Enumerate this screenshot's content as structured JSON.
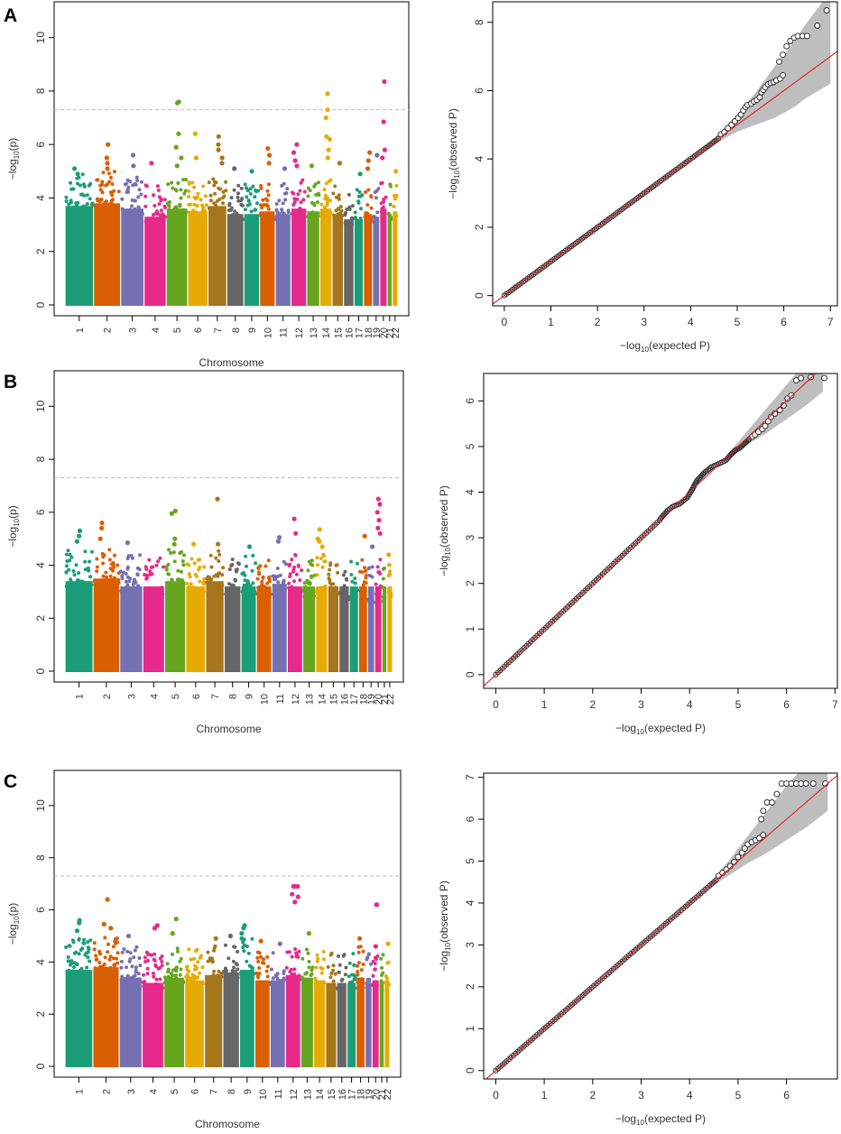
{
  "figure": {
    "panels": [
      {
        "letter": "A",
        "manhattan_ref": 0,
        "qq_ref": 3
      },
      {
        "letter": "B",
        "manhattan_ref": 1,
        "qq_ref": 4
      },
      {
        "letter": "C",
        "manhattan_ref": 2,
        "qq_ref": 5
      }
    ]
  },
  "colors": {
    "chromosome_palette": [
      "#1b9e77",
      "#d95f02",
      "#7570b3",
      "#e7298a",
      "#66a61e",
      "#e6ab02",
      "#a6761d",
      "#666666"
    ],
    "threshold_line": "#bbbbbb",
    "qq_points": "#222222",
    "qq_diagonal": "#e41a1c",
    "qq_confidence_band": "#bebebe",
    "axis": "#000000"
  },
  "chart_data": [
    {
      "type": "scatter",
      "subtype": "manhattan",
      "panel": "A",
      "xlabel": "Chromosome",
      "ylabel": "−log10(p)",
      "ylim": [
        0,
        11
      ],
      "yticks": [
        0,
        2,
        4,
        6,
        8,
        10
      ],
      "genome_wide_threshold": 7.3,
      "chromosomes": [
        "1",
        "2",
        "3",
        "4",
        "5",
        "6",
        "7",
        "8",
        "9",
        "10",
        "11",
        "12",
        "13",
        "14",
        "15",
        "16",
        "17",
        "18",
        "19",
        "20",
        "21",
        "22"
      ],
      "chromosome_widths": [
        1.0,
        0.95,
        0.82,
        0.78,
        0.75,
        0.71,
        0.66,
        0.6,
        0.55,
        0.55,
        0.55,
        0.55,
        0.46,
        0.43,
        0.4,
        0.37,
        0.33,
        0.32,
        0.25,
        0.26,
        0.18,
        0.2
      ],
      "chromosome_background_max": [
        4.9,
        5.0,
        4.8,
        4.5,
        4.8,
        4.7,
        4.9,
        4.6,
        4.6,
        4.7,
        4.6,
        4.8,
        4.7,
        4.8,
        4.6,
        4.4,
        4.4,
        4.6,
        4.5,
        4.8,
        4.6,
        4.7
      ],
      "peaks": [
        {
          "chromosome": "1",
          "values": [
            5.1,
            4.9
          ]
        },
        {
          "chromosome": "2",
          "values": [
            6.0,
            5.5,
            5.3,
            5.1
          ]
        },
        {
          "chromosome": "3",
          "values": [
            5.6,
            5.2
          ]
        },
        {
          "chromosome": "4",
          "values": [
            5.3
          ]
        },
        {
          "chromosome": "5",
          "values": [
            7.6,
            7.55,
            6.4,
            5.9,
            5.5,
            5.2
          ]
        },
        {
          "chromosome": "6",
          "values": [
            6.4,
            5.5
          ]
        },
        {
          "chromosome": "7",
          "values": [
            6.3,
            6.0,
            5.8,
            5.5,
            5.3
          ]
        },
        {
          "chromosome": "8",
          "values": [
            5.1
          ]
        },
        {
          "chromosome": "9",
          "values": [
            5.0
          ]
        },
        {
          "chromosome": "10",
          "values": [
            5.85,
            5.6,
            5.3
          ]
        },
        {
          "chromosome": "11",
          "values": [
            5.1
          ]
        },
        {
          "chromosome": "12",
          "values": [
            6.0,
            5.7,
            5.4,
            5.2
          ]
        },
        {
          "chromosome": "13",
          "values": [
            5.2
          ]
        },
        {
          "chromosome": "14",
          "values": [
            7.9,
            7.3,
            7.0,
            6.3,
            6.2,
            5.8,
            5.5
          ]
        },
        {
          "chromosome": "15",
          "values": [
            5.3
          ]
        },
        {
          "chromosome": "17",
          "values": [
            4.9
          ]
        },
        {
          "chromosome": "18",
          "values": [
            5.7,
            5.4,
            5.1
          ]
        },
        {
          "chromosome": "19",
          "values": [
            5.6
          ]
        },
        {
          "chromosome": "20",
          "values": [
            8.35,
            6.85,
            5.8,
            5.5
          ]
        },
        {
          "chromosome": "22",
          "values": [
            5.0
          ]
        }
      ]
    },
    {
      "type": "scatter",
      "subtype": "manhattan",
      "panel": "B",
      "xlabel": "Chromosome",
      "ylabel": "−log10(p)",
      "ylim": [
        0,
        11
      ],
      "yticks": [
        0,
        2,
        4,
        6,
        8,
        10
      ],
      "genome_wide_threshold": 7.3,
      "chromosomes": [
        "1",
        "2",
        "3",
        "4",
        "5",
        "6",
        "7",
        "8",
        "9",
        "10",
        "11",
        "12",
        "13",
        "14",
        "15",
        "16",
        "17",
        "18",
        "19",
        "20",
        "21",
        "22"
      ],
      "chromosome_widths": [
        1.0,
        0.95,
        0.82,
        0.78,
        0.75,
        0.71,
        0.66,
        0.6,
        0.55,
        0.55,
        0.55,
        0.55,
        0.46,
        0.43,
        0.4,
        0.37,
        0.33,
        0.32,
        0.25,
        0.26,
        0.18,
        0.2
      ],
      "chromosome_background_max": [
        4.6,
        4.7,
        4.4,
        4.3,
        4.6,
        4.4,
        4.6,
        4.3,
        4.4,
        4.3,
        4.5,
        4.4,
        4.2,
        4.4,
        4.2,
        4.1,
        4.2,
        4.3,
        4.0,
        4.3,
        3.9,
        4.1
      ],
      "peaks": [
        {
          "chromosome": "1",
          "values": [
            5.3,
            5.1,
            4.9
          ]
        },
        {
          "chromosome": "2",
          "values": [
            5.6,
            5.4,
            5.0
          ]
        },
        {
          "chromosome": "3",
          "values": [
            4.85
          ]
        },
        {
          "chromosome": "5",
          "values": [
            6.05,
            5.95,
            5.0,
            4.8
          ]
        },
        {
          "chromosome": "6",
          "values": [
            4.8
          ]
        },
        {
          "chromosome": "7",
          "values": [
            6.5,
            4.8
          ]
        },
        {
          "chromosome": "9",
          "values": [
            4.7
          ]
        },
        {
          "chromosome": "11",
          "values": [
            5.05,
            4.9
          ]
        },
        {
          "chromosome": "12",
          "values": [
            5.75,
            5.2
          ]
        },
        {
          "chromosome": "14",
          "values": [
            5.35,
            5.0,
            4.9,
            4.7
          ]
        },
        {
          "chromosome": "18",
          "values": [
            5.1
          ]
        },
        {
          "chromosome": "19",
          "values": [
            4.7
          ]
        },
        {
          "chromosome": "20",
          "values": [
            6.5,
            6.3,
            6.0,
            5.7,
            5.4,
            5.2
          ]
        },
        {
          "chromosome": "22",
          "values": [
            4.4
          ]
        }
      ]
    },
    {
      "type": "scatter",
      "subtype": "manhattan",
      "panel": "C",
      "xlabel": "Chromosome",
      "ylabel": "−log10(p)",
      "ylim": [
        0,
        11
      ],
      "yticks": [
        0,
        2,
        4,
        6,
        8,
        10
      ],
      "genome_wide_threshold": 7.3,
      "chromosomes": [
        "1",
        "2",
        "3",
        "4",
        "5",
        "6",
        "7",
        "8",
        "9",
        "10",
        "11",
        "12",
        "13",
        "14",
        "15",
        "16",
        "17",
        "18",
        "19",
        "20",
        "21",
        "22"
      ],
      "chromosome_widths": [
        1.0,
        0.95,
        0.82,
        0.78,
        0.75,
        0.71,
        0.66,
        0.6,
        0.55,
        0.55,
        0.55,
        0.55,
        0.46,
        0.43,
        0.4,
        0.37,
        0.33,
        0.32,
        0.25,
        0.26,
        0.18,
        0.2
      ],
      "chromosome_background_max": [
        4.9,
        5.0,
        4.6,
        4.4,
        4.6,
        4.5,
        4.7,
        4.8,
        4.9,
        4.5,
        4.5,
        4.7,
        4.6,
        4.5,
        4.4,
        4.3,
        4.4,
        4.6,
        4.4,
        4.5,
        4.3,
        4.5
      ],
      "peaks": [
        {
          "chromosome": "1",
          "values": [
            5.6,
            5.5,
            5.2
          ]
        },
        {
          "chromosome": "2",
          "values": [
            6.4,
            5.45,
            5.3
          ]
        },
        {
          "chromosome": "3",
          "values": [
            5.0
          ]
        },
        {
          "chromosome": "4",
          "values": [
            5.4,
            5.3
          ]
        },
        {
          "chromosome": "5",
          "values": [
            5.65,
            5.1
          ]
        },
        {
          "chromosome": "7",
          "values": [
            4.9
          ]
        },
        {
          "chromosome": "8",
          "values": [
            5.0
          ]
        },
        {
          "chromosome": "9",
          "values": [
            5.4,
            5.3,
            5.1,
            4.9
          ]
        },
        {
          "chromosome": "10",
          "values": [
            4.8
          ]
        },
        {
          "chromosome": "11",
          "values": [
            4.7
          ]
        },
        {
          "chromosome": "12",
          "values": [
            6.9,
            6.9,
            6.9,
            6.9,
            6.6,
            6.5,
            6.3
          ]
        },
        {
          "chromosome": "13",
          "values": [
            5.1
          ]
        },
        {
          "chromosome": "18",
          "values": [
            4.9
          ]
        },
        {
          "chromosome": "20",
          "values": [
            6.2,
            6.2,
            4.6
          ]
        },
        {
          "chromosome": "22",
          "values": [
            4.7
          ]
        }
      ]
    },
    {
      "type": "scatter",
      "subtype": "qq",
      "panel": "A",
      "xlabel": "−log10(expected P)",
      "ylabel": "−log10(observed P)",
      "xlim": [
        -0.25,
        7.15
      ],
      "ylim": [
        -0.3,
        8.6
      ],
      "xticks": [
        0,
        1,
        2,
        3,
        4,
        5,
        6,
        7
      ],
      "yticks": [
        0,
        2,
        4,
        6,
        8
      ],
      "bulk_max_x": 4.6,
      "confidence_band": [
        [
          4.3,
          4.35,
          4.25
        ],
        [
          4.6,
          4.75,
          4.5
        ],
        [
          5.0,
          5.3,
          4.8
        ],
        [
          5.4,
          5.95,
          5.0
        ],
        [
          5.8,
          6.7,
          5.2
        ],
        [
          6.2,
          7.4,
          5.5
        ],
        [
          6.5,
          8.0,
          5.8
        ],
        [
          7.0,
          8.9,
          6.2
        ]
      ],
      "tail_points": [
        [
          4.65,
          4.72
        ],
        [
          4.72,
          4.78
        ],
        [
          4.8,
          4.9
        ],
        [
          4.88,
          5.0
        ],
        [
          4.95,
          5.1
        ],
        [
          5.02,
          5.2
        ],
        [
          5.08,
          5.3
        ],
        [
          5.13,
          5.42
        ],
        [
          5.18,
          5.52
        ],
        [
          5.22,
          5.58
        ],
        [
          5.3,
          5.62
        ],
        [
          5.36,
          5.68
        ],
        [
          5.42,
          5.73
        ],
        [
          5.48,
          5.8
        ],
        [
          5.52,
          5.95
        ],
        [
          5.56,
          6.02
        ],
        [
          5.6,
          6.1
        ],
        [
          5.66,
          6.18
        ],
        [
          5.72,
          6.22
        ],
        [
          5.78,
          6.25
        ],
        [
          5.84,
          6.3
        ],
        [
          5.92,
          6.35
        ],
        [
          5.98,
          6.45
        ],
        [
          5.9,
          6.85
        ],
        [
          5.98,
          7.05
        ],
        [
          6.06,
          7.3
        ],
        [
          6.14,
          7.45
        ],
        [
          6.22,
          7.55
        ],
        [
          6.3,
          7.6
        ],
        [
          6.4,
          7.6
        ],
        [
          6.5,
          7.6
        ],
        [
          6.72,
          7.9
        ],
        [
          6.92,
          8.35
        ]
      ]
    },
    {
      "type": "scatter",
      "subtype": "qq",
      "panel": "B",
      "xlabel": "−log10(expected P)",
      "ylabel": "−log10(observed P)",
      "xlim": [
        -0.25,
        7.05
      ],
      "ylim": [
        -0.3,
        6.6
      ],
      "xticks": [
        0,
        1,
        2,
        3,
        4,
        5,
        6,
        7
      ],
      "yticks": [
        0,
        1,
        2,
        3,
        4,
        5,
        6
      ],
      "bulk_max_x": 3.4,
      "bulk_curve": [
        [
          3.4,
          3.42
        ],
        [
          3.55,
          3.6
        ],
        [
          3.65,
          3.68
        ],
        [
          3.8,
          3.75
        ],
        [
          3.95,
          3.88
        ],
        [
          4.05,
          4.05
        ],
        [
          4.15,
          4.25
        ],
        [
          4.3,
          4.42
        ],
        [
          4.45,
          4.55
        ],
        [
          4.6,
          4.62
        ],
        [
          4.75,
          4.7
        ],
        [
          4.85,
          4.82
        ],
        [
          4.95,
          4.92
        ],
        [
          5.05,
          4.98
        ],
        [
          5.15,
          5.08
        ],
        [
          5.25,
          5.18
        ]
      ],
      "confidence_band": [
        [
          4.8,
          4.85,
          4.75
        ],
        [
          5.2,
          5.35,
          5.05
        ],
        [
          5.6,
          5.85,
          5.3
        ],
        [
          6.0,
          6.35,
          5.6
        ],
        [
          6.4,
          6.85,
          5.9
        ],
        [
          6.75,
          7.1,
          6.2
        ]
      ],
      "tail_points": [
        [
          5.3,
          5.22
        ],
        [
          5.35,
          5.26
        ],
        [
          5.42,
          5.32
        ],
        [
          5.5,
          5.38
        ],
        [
          5.56,
          5.45
        ],
        [
          5.62,
          5.55
        ],
        [
          5.68,
          5.65
        ],
        [
          5.76,
          5.72
        ],
        [
          5.86,
          5.8
        ],
        [
          5.94,
          5.9
        ],
        [
          6.02,
          6.05
        ],
        [
          6.1,
          6.12
        ],
        [
          6.2,
          6.45
        ],
        [
          6.3,
          6.5
        ],
        [
          6.5,
          6.52
        ],
        [
          6.78,
          6.5
        ]
      ]
    },
    {
      "type": "scatter",
      "subtype": "qq",
      "panel": "C",
      "xlabel": "−log10(expected P)",
      "ylabel": "−log10(observed P)",
      "xlim": [
        -0.25,
        7.05
      ],
      "ylim": [
        -0.2,
        7.1
      ],
      "xticks": [
        0,
        1,
        2,
        3,
        4,
        5,
        6
      ],
      "yticks": [
        0,
        1,
        2,
        3,
        4,
        5,
        6,
        7
      ],
      "bulk_max_x": 4.55,
      "confidence_band": [
        [
          4.4,
          4.45,
          4.35
        ],
        [
          4.8,
          5.0,
          4.65
        ],
        [
          5.2,
          5.6,
          4.95
        ],
        [
          5.6,
          6.2,
          5.2
        ],
        [
          6.0,
          6.8,
          5.5
        ],
        [
          6.4,
          7.3,
          5.8
        ],
        [
          6.85,
          7.6,
          6.2
        ]
      ],
      "tail_points": [
        [
          4.6,
          4.65
        ],
        [
          4.68,
          4.72
        ],
        [
          4.76,
          4.8
        ],
        [
          4.84,
          4.88
        ],
        [
          4.92,
          4.98
        ],
        [
          5.0,
          5.1
        ],
        [
          5.08,
          5.2
        ],
        [
          5.14,
          5.3
        ],
        [
          5.2,
          5.4
        ],
        [
          5.28,
          5.45
        ],
        [
          5.36,
          5.5
        ],
        [
          5.44,
          5.55
        ],
        [
          5.52,
          5.62
        ],
        [
          5.48,
          6.0
        ],
        [
          5.52,
          6.2
        ],
        [
          5.6,
          6.4
        ],
        [
          5.7,
          6.4
        ],
        [
          5.8,
          6.6
        ],
        [
          5.9,
          6.85
        ],
        [
          6.0,
          6.85
        ],
        [
          6.1,
          6.85
        ],
        [
          6.2,
          6.85
        ],
        [
          6.3,
          6.85
        ],
        [
          6.4,
          6.85
        ],
        [
          6.55,
          6.85
        ],
        [
          6.8,
          6.85
        ]
      ]
    }
  ]
}
